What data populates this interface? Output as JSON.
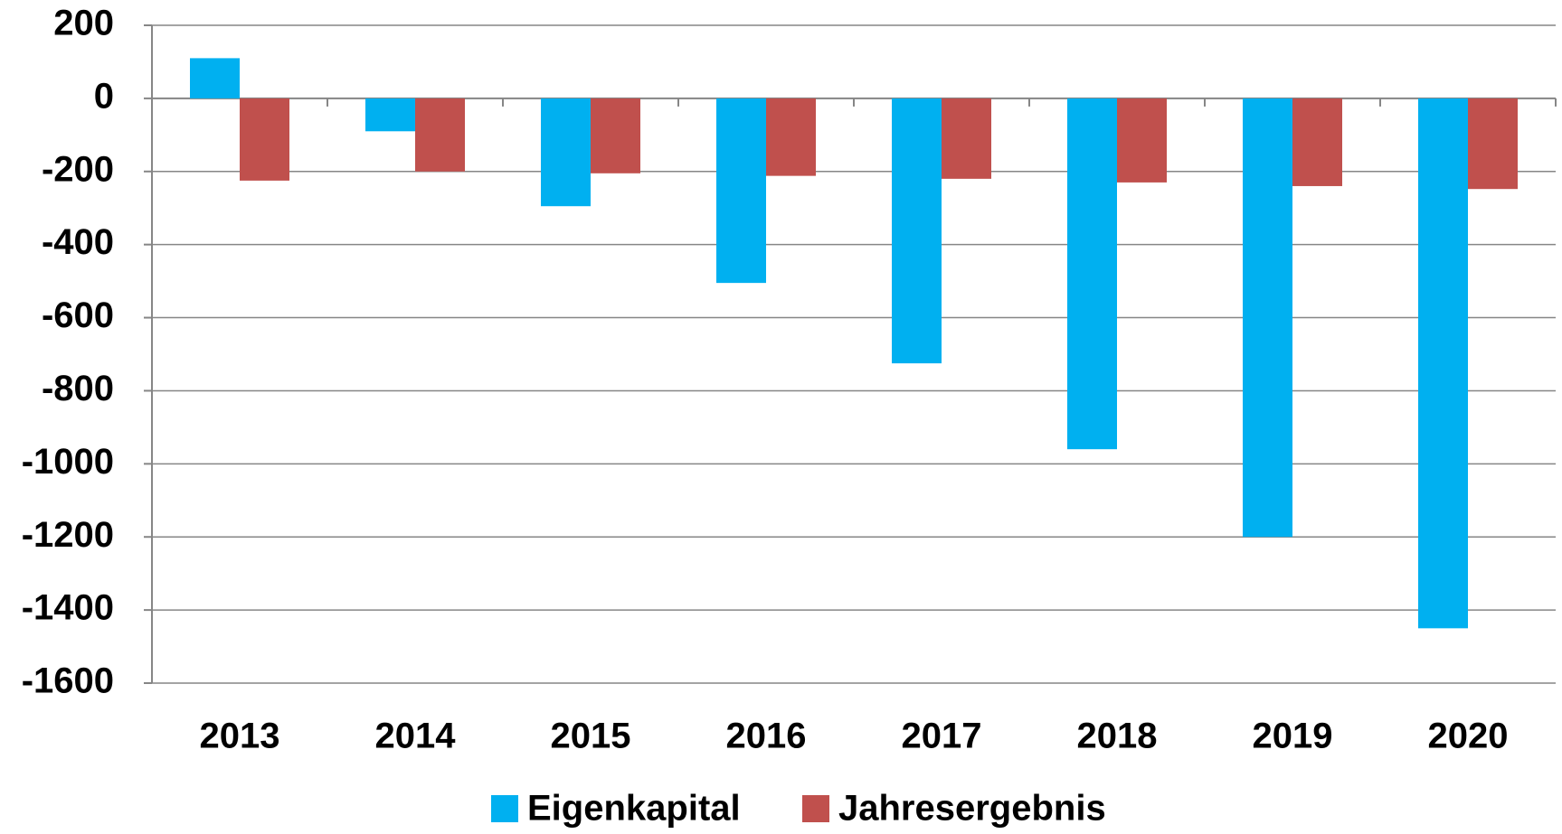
{
  "chart_data": {
    "type": "bar",
    "categories": [
      "2013",
      "2014",
      "2015",
      "2016",
      "2017",
      "2018",
      "2019",
      "2020"
    ],
    "series": [
      {
        "name": "Eigenkapital",
        "color": "#00b0f0",
        "values": [
          110,
          -90,
          -295,
          -505,
          -725,
          -960,
          -1200,
          -1450
        ]
      },
      {
        "name": "Jahresergebnis",
        "color": "#c0504d",
        "values": [
          -225,
          -200,
          -205,
          -212,
          -220,
          -230,
          -240,
          -248
        ]
      }
    ],
    "ylim": [
      -1600,
      200
    ],
    "yticks": [
      -1600,
      -1400,
      -1200,
      -1000,
      -800,
      -600,
      -400,
      -200,
      0,
      200
    ],
    "grid": true,
    "legend": "bottom"
  }
}
